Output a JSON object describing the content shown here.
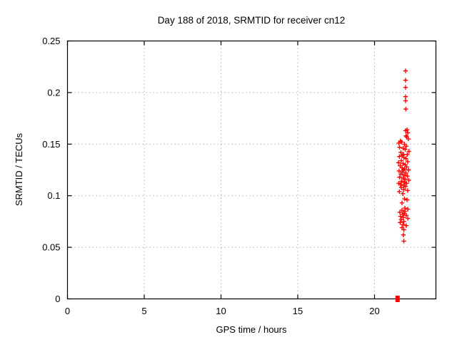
{
  "page": {
    "background": "#ffffff"
  },
  "chart_data": {
    "type": "scatter",
    "title": "Day 188 of 2018, SRMTID for receiver cn12",
    "xlabel": "GPS time / hours",
    "ylabel": "SRMTID / TECUs",
    "xlim": [
      0,
      24
    ],
    "ylim": [
      0,
      0.25
    ],
    "x_ticks": [
      0,
      5,
      10,
      15,
      20
    ],
    "x_tick_labels": [
      "0",
      "5",
      "10",
      "15",
      "20"
    ],
    "y_ticks": [
      0,
      0.05,
      0.1,
      0.15,
      0.2,
      0.25
    ],
    "y_tick_labels": [
      "0",
      "0.05",
      "0.1",
      "0.15",
      "0.2",
      "0.25"
    ],
    "grid": true,
    "grid_style": "dotted",
    "legend": "none",
    "style": {
      "marker_color": "#ff0000",
      "grid_color": "#b0b0b0",
      "axis_color": "#000000",
      "text_color": "#000000",
      "background": "#ffffff"
    },
    "series": [
      {
        "name": "SRMTID",
        "marker": "plus",
        "color": "#ff0000",
        "points": [
          [
            22.02,
            0.221
          ],
          [
            22.02,
            0.212
          ],
          [
            22.02,
            0.205
          ],
          [
            22.02,
            0.196
          ],
          [
            22.02,
            0.192
          ],
          [
            22.04,
            0.184
          ],
          [
            22.12,
            0.164
          ],
          [
            22.02,
            0.163
          ],
          [
            22.17,
            0.161
          ],
          [
            22.05,
            0.158
          ],
          [
            22.1,
            0.157
          ],
          [
            22.2,
            0.155
          ],
          [
            21.69,
            0.153
          ],
          [
            21.58,
            0.151
          ],
          [
            21.76,
            0.152
          ],
          [
            21.95,
            0.15
          ],
          [
            22.07,
            0.148
          ],
          [
            21.63,
            0.147
          ],
          [
            21.86,
            0.146
          ],
          [
            22.0,
            0.145
          ],
          [
            22.24,
            0.143
          ],
          [
            21.72,
            0.142
          ],
          [
            21.9,
            0.14
          ],
          [
            22.13,
            0.14
          ],
          [
            21.81,
            0.139
          ],
          [
            21.62,
            0.138
          ],
          [
            21.91,
            0.137
          ],
          [
            22.05,
            0.136
          ],
          [
            21.74,
            0.134
          ],
          [
            22.16,
            0.133
          ],
          [
            21.56,
            0.132
          ],
          [
            21.86,
            0.131
          ],
          [
            22.0,
            0.13
          ],
          [
            21.67,
            0.129
          ],
          [
            22.09,
            0.128
          ],
          [
            21.79,
            0.127
          ],
          [
            21.95,
            0.126
          ],
          [
            22.21,
            0.125
          ],
          [
            21.88,
            0.125
          ],
          [
            21.6,
            0.124
          ],
          [
            21.81,
            0.123
          ],
          [
            22.04,
            0.122
          ],
          [
            21.72,
            0.121
          ],
          [
            21.93,
            0.12
          ],
          [
            22.14,
            0.119
          ],
          [
            21.63,
            0.118
          ],
          [
            21.86,
            0.117
          ],
          [
            22.0,
            0.116
          ],
          [
            22.23,
            0.115
          ],
          [
            21.76,
            0.114
          ],
          [
            21.95,
            0.113
          ],
          [
            21.58,
            0.112
          ],
          [
            22.09,
            0.112
          ],
          [
            21.69,
            0.111
          ],
          [
            21.9,
            0.11
          ],
          [
            22.02,
            0.109
          ],
          [
            21.74,
            0.108
          ],
          [
            21.91,
            0.106
          ],
          [
            22.16,
            0.105
          ],
          [
            21.62,
            0.104
          ],
          [
            21.84,
            0.102
          ],
          [
            21.95,
            0.097
          ],
          [
            22.12,
            0.096
          ],
          [
            21.79,
            0.093
          ],
          [
            21.98,
            0.088
          ],
          [
            22.17,
            0.087
          ],
          [
            21.79,
            0.086
          ],
          [
            21.98,
            0.085
          ],
          [
            21.65,
            0.084
          ],
          [
            21.93,
            0.083
          ],
          [
            21.84,
            0.082
          ],
          [
            22.07,
            0.081
          ],
          [
            21.7,
            0.08
          ],
          [
            21.88,
            0.079
          ],
          [
            22.17,
            0.078
          ],
          [
            21.74,
            0.077
          ],
          [
            21.91,
            0.075
          ],
          [
            21.67,
            0.074
          ],
          [
            21.86,
            0.072
          ],
          [
            22.07,
            0.071
          ],
          [
            21.79,
            0.069
          ],
          [
            21.91,
            0.067
          ],
          [
            21.88,
            0.062
          ],
          [
            21.91,
            0.056
          ]
        ]
      },
      {
        "name": "zero-value marker",
        "marker": "filled-square",
        "color": "#ff0000",
        "points": [
          [
            21.5,
            0
          ]
        ]
      }
    ]
  }
}
